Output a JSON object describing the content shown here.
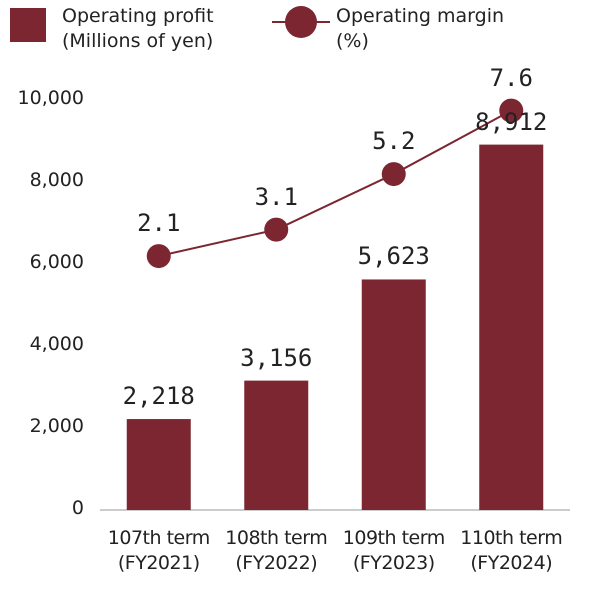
{
  "chart_data": {
    "type": "bar+line",
    "categories": [
      "107th term\n(FY2021)",
      "108th term\n(FY2022)",
      "109th term\n(FY2023)",
      "110th term\n(FY2024)"
    ],
    "series": [
      {
        "name": "Operating profit\n(Millions of yen)",
        "type": "bar",
        "color": "#7b2631",
        "values": [
          2218,
          3156,
          5623,
          8912
        ],
        "value_labels": [
          "2,218",
          "3,156",
          "5,623",
          "8,912"
        ]
      },
      {
        "name": "Operating  margin\n(%)",
        "type": "line",
        "axis": "y2",
        "color": "#7b2631",
        "values": [
          2.1,
          3.1,
          5.2,
          7.6
        ]
      }
    ],
    "ylim": [
      0,
      10000
    ],
    "yticks": [
      0,
      {
        "value": 2000,
        "label": "2,000"
      },
      {
        "value": 4000,
        "label": "4,000"
      },
      {
        "value": 6000,
        "label": "6,000"
      },
      {
        "value": 8000,
        "label": "8,000"
      },
      {
        "value": 10000,
        "label": "10,000"
      }
    ],
    "y2lim": [
      -7.5,
      8
    ]
  }
}
